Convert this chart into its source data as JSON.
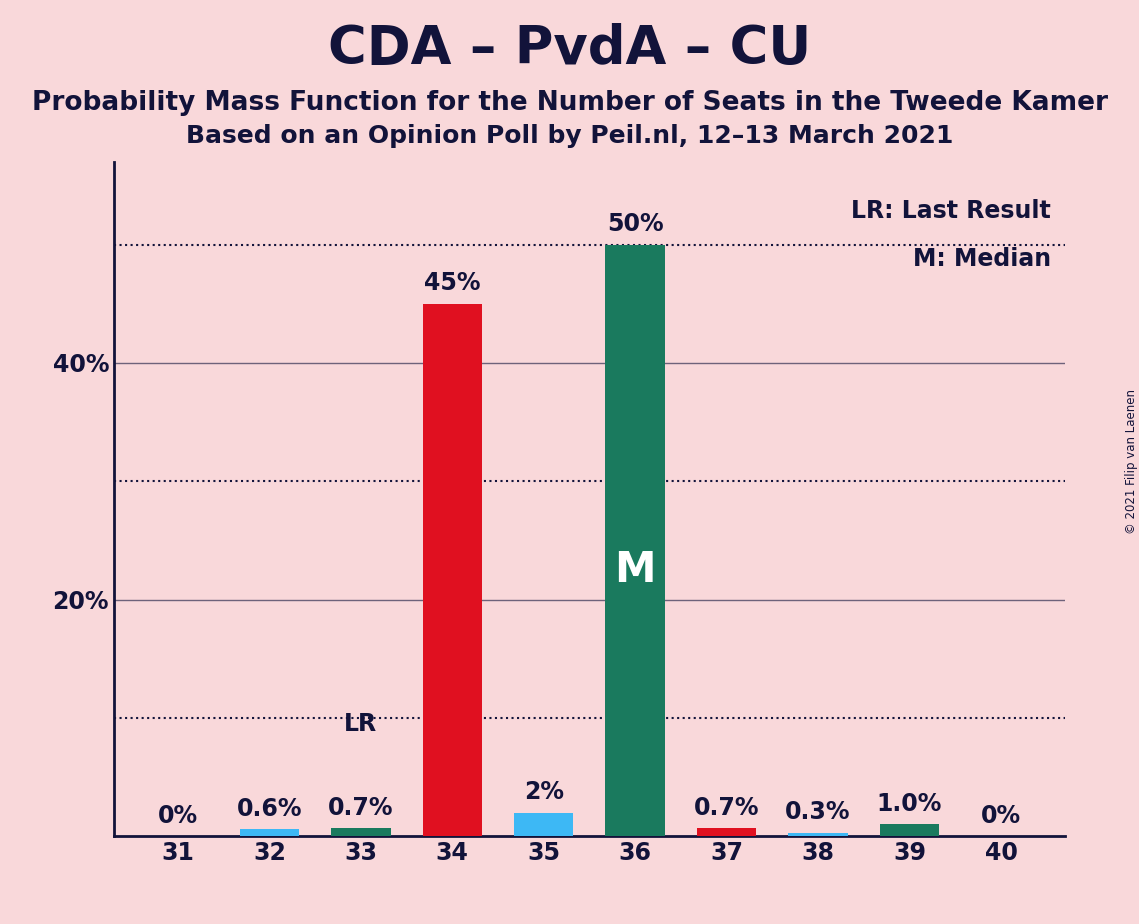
{
  "title": "CDA – PvdA – CU",
  "subtitle1": "Probability Mass Function for the Number of Seats in the Tweede Kamer",
  "subtitle2": "Based on an Opinion Poll by Peil.nl, 12–13 March 2021",
  "copyright": "© 2021 Filip van Laenen",
  "seats": [
    31,
    32,
    33,
    34,
    35,
    36,
    37,
    38,
    39,
    40
  ],
  "bar_data": {
    "31": {
      "blue": 0.0,
      "red": 0.0,
      "green": 0.0
    },
    "32": {
      "blue": 0.6,
      "red": 0.0,
      "green": 0.0
    },
    "33": {
      "blue": 0.0,
      "red": 0.0,
      "green": 0.7
    },
    "34": {
      "blue": 0.0,
      "red": 45.0,
      "green": 0.0
    },
    "35": {
      "blue": 2.0,
      "red": 0.0,
      "green": 0.0
    },
    "36": {
      "blue": 0.0,
      "red": 0.0,
      "green": 50.0
    },
    "37": {
      "blue": 0.0,
      "red": 0.7,
      "green": 0.0
    },
    "38": {
      "blue": 0.3,
      "red": 0.0,
      "green": 0.0
    },
    "39": {
      "blue": 0.0,
      "red": 0.0,
      "green": 1.0
    },
    "40": {
      "blue": 0.0,
      "red": 0.0,
      "green": 0.0
    }
  },
  "labels": {
    "31": "0%",
    "32": "0.6%",
    "33": "0.7%",
    "34": "45%",
    "35": "2%",
    "36": "50%",
    "37": "0.7%",
    "38": "0.3%",
    "39": "1.0%",
    "40": "0%"
  },
  "lr_seat": 33,
  "median_seat": 36,
  "blue_color": "#3db8f5",
  "red_color": "#e01020",
  "green_color": "#1a7a5e",
  "background_color": "#f9d8da",
  "text_color": "#12133a",
  "ylim": [
    0,
    57
  ],
  "solid_lines": [
    20,
    40
  ],
  "dotted_lines": [
    10,
    30,
    50
  ],
  "legend_lr": "LR: Last Result",
  "legend_m": "M: Median",
  "bar_width": 0.65,
  "label_fontsize": 17,
  "title_fontsize": 38,
  "subtitle_fontsize": 19,
  "subtitle2_fontsize": 18,
  "m_fontsize": 30,
  "lr_label_fontsize": 17
}
